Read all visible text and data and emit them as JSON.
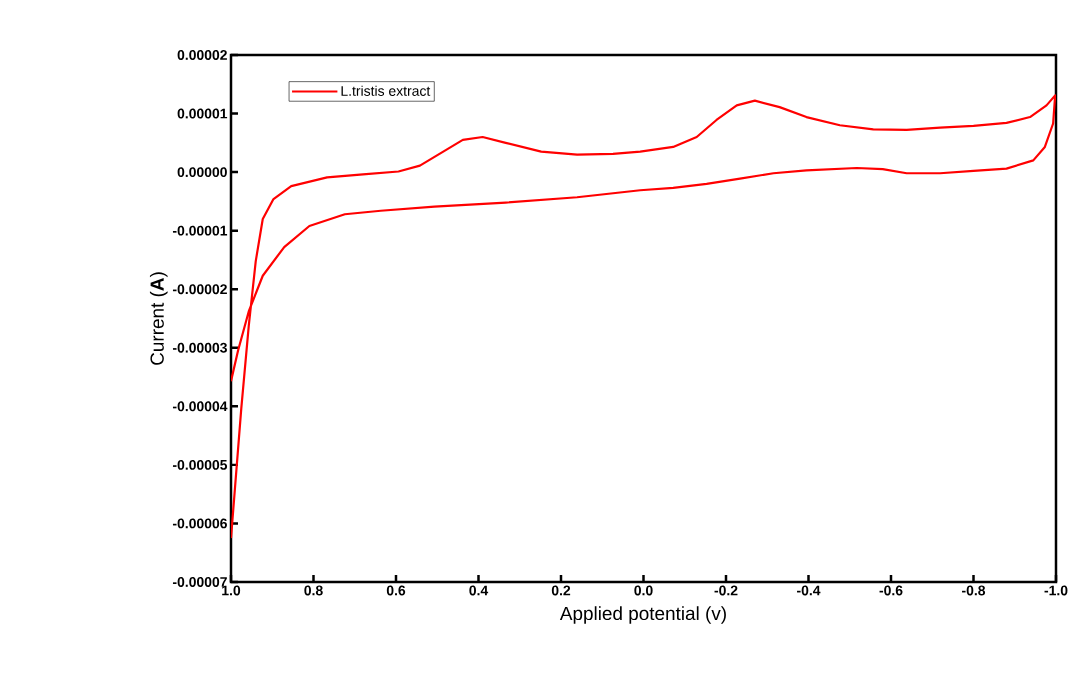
{
  "chart_data": {
    "type": "line",
    "xlabel": "Applied potential (v)",
    "ylabel": "Current (**A**)",
    "xlim": [
      1.0,
      -1.0
    ],
    "ylim": [
      -7e-05,
      2e-05
    ],
    "xticks": [
      {
        "value": 1.0,
        "label": "1.0"
      },
      0.8,
      0.6,
      0.4,
      0.2,
      {
        "value": 0.0,
        "label": "0.0"
      },
      -0.2,
      -0.4,
      -0.6,
      -0.8,
      {
        "value": -1.0,
        "label": "-1.0"
      }
    ],
    "yticks": [
      {
        "value": 2e-05,
        "label": "0.00002"
      },
      {
        "value": 1e-05,
        "label": "0.00001"
      },
      {
        "value": 0,
        "label": "0.00000"
      },
      {
        "value": -1e-05,
        "label": "-0.00001"
      },
      {
        "value": -2e-05,
        "label": "-0.00002"
      },
      {
        "value": -3e-05,
        "label": "-0.00003"
      },
      {
        "value": -4e-05,
        "label": "-0.00004"
      },
      {
        "value": -5e-05,
        "label": "-0.00005"
      },
      {
        "value": -6e-05,
        "label": "-0.00006"
      },
      {
        "value": -7e-05,
        "label": "-0.00007"
      }
    ],
    "grid": false,
    "legend": "top left",
    "marker": "none",
    "line_style": "solid",
    "series": [
      {
        "name": "L.tristis extract",
        "color": "#ff0000",
        "x": [
          1.0,
          0.975,
          0.957,
          0.94,
          0.923,
          0.897,
          0.854,
          0.767,
          0.68,
          0.594,
          0.542,
          0.49,
          0.438,
          0.39,
          0.334,
          0.248,
          0.161,
          0.074,
          0.008,
          -0.072,
          -0.129,
          -0.177,
          -0.226,
          -0.27,
          -0.33,
          -0.395,
          -0.476,
          -0.557,
          -0.638,
          -0.719,
          -0.8,
          -0.88,
          -0.937,
          -0.977,
          -0.998,
          -0.993,
          -0.973,
          -0.945,
          -0.88,
          -0.8,
          -0.719,
          -0.638,
          -0.58,
          -0.517,
          -0.395,
          -0.315,
          -0.234,
          -0.153,
          -0.072,
          0.008,
          0.161,
          0.334,
          0.507,
          0.637,
          0.724,
          0.81,
          0.871,
          0.923,
          0.957,
          0.983,
          1.0
        ],
        "values": [
          -6.25e-05,
          -4.03e-05,
          -2.63e-05,
          -1.52e-05,
          -8e-06,
          -4.6e-06,
          -2.4e-06,
          -9e-07,
          -4e-07,
          1e-07,
          1.1e-06,
          3.3e-06,
          5.5e-06,
          6e-06,
          5e-06,
          3.5e-06,
          3e-06,
          3.1e-06,
          3.5e-06,
          4.3e-06,
          6e-06,
          8.9e-06,
          1.14e-05,
          1.22e-05,
          1.11e-05,
          9.4e-06,
          8e-06,
          7.3e-06,
          7.2e-06,
          7.6e-06,
          7.9e-06,
          8.4e-06,
          9.4e-06,
          1.14e-05,
          1.31e-05,
          8.3e-06,
          4.3e-06,
          2e-06,
          6e-07,
          2e-07,
          -2e-07,
          -2e-07,
          5e-07,
          7e-07,
          3e-07,
          -2e-07,
          -1.1e-06,
          -2e-06,
          -2.7e-06,
          -3.1e-06,
          -4.3e-06,
          -5.2e-06,
          -5.9e-06,
          -6.6e-06,
          -7.2e-06,
          -9.2e-06,
          -1.28e-05,
          -1.77e-05,
          -2.38e-05,
          -3.05e-05,
          -3.57e-05
        ]
      }
    ]
  }
}
